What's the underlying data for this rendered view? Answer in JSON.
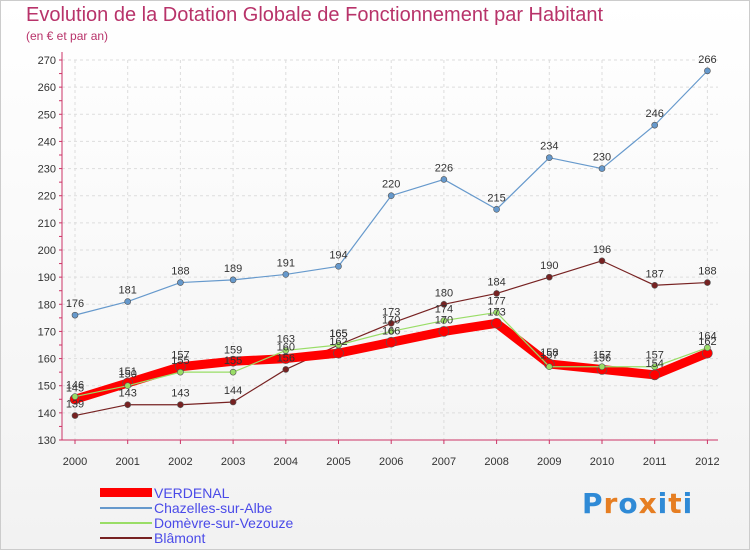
{
  "title": "Evolution de la Dotation Globale de Fonctionnement par Habitant",
  "subtitle": "(en € et par an)",
  "brand": {
    "text": "Proxiti",
    "letters": [
      "P",
      "r",
      "o",
      "x",
      "i",
      "t",
      "i"
    ],
    "colors": [
      "#2f8ad6",
      "#e67e22",
      "#2f8ad6",
      "#e67e22",
      "#2f8ad6",
      "#e67e22",
      "#2f8ad6"
    ]
  },
  "chart_data": {
    "type": "line",
    "x": [
      "2000",
      "2001",
      "2002",
      "2003",
      "2004",
      "2005",
      "2006",
      "2007",
      "2008",
      "2009",
      "2010",
      "2011",
      "2012"
    ],
    "ylim": [
      130,
      270
    ],
    "yticks": [
      130,
      140,
      150,
      160,
      170,
      180,
      190,
      200,
      210,
      220,
      230,
      240,
      250,
      260,
      270
    ],
    "grid": true,
    "legend_position": "bottom-left",
    "series": [
      {
        "name": "VERDENAL",
        "color": "#ff0000",
        "values": [
          145,
          151,
          157,
          159,
          160,
          162,
          166,
          170,
          173,
          158,
          156,
          154,
          162
        ]
      },
      {
        "name": "Chazelles-sur-Albe",
        "color": "#6699cc",
        "values": [
          176,
          181,
          188,
          189,
          191,
          194,
          220,
          226,
          215,
          234,
          230,
          246,
          266
        ]
      },
      {
        "name": "Domèvre-sur-Vezouze",
        "color": "#99dd66",
        "values": [
          146,
          150,
          155,
          155,
          163,
          165,
          170,
          174,
          177,
          157,
          157,
          157,
          164
        ]
      },
      {
        "name": "Blâmont",
        "color": "#772222",
        "values": [
          139,
          143,
          143,
          144,
          156,
          165,
          173,
          180,
          184,
          190,
          196,
          187,
          188
        ]
      }
    ]
  }
}
